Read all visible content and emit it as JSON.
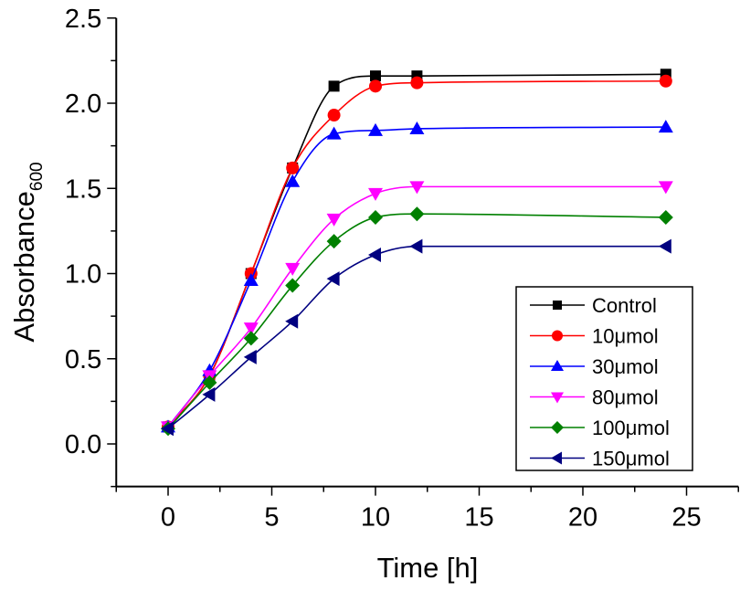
{
  "chart_data": {
    "type": "line",
    "title": "",
    "xlabel": "Time [h]",
    "ylabel": "Absorbance",
    "ylabel_subscript": "600",
    "xlim": [
      -2.5,
      27.5
    ],
    "ylim": [
      -0.25,
      2.5
    ],
    "xticks": [
      0,
      5,
      10,
      15,
      20,
      25
    ],
    "xtick_labels": [
      "0",
      "5",
      "10",
      "15",
      "20",
      "25"
    ],
    "yticks": [
      0.0,
      0.5,
      1.0,
      1.5,
      2.0,
      2.5
    ],
    "ytick_labels": [
      "0.0",
      "0.5",
      "1.0",
      "1.5",
      "2.0",
      "2.5"
    ],
    "x_minor_step": 2.5,
    "y_minor_step": 0.25,
    "grid": false,
    "legend_position": "bottom-right",
    "x": [
      0,
      2,
      4,
      6,
      8,
      10,
      12,
      24
    ],
    "series": [
      {
        "name": "Control",
        "color": "#000000",
        "marker": "square",
        "values": [
          0.1,
          0.4,
          1.0,
          1.62,
          2.1,
          2.16,
          2.16,
          2.17
        ]
      },
      {
        "name": "10μmol",
        "color": "#ff0000",
        "marker": "circle",
        "values": [
          0.1,
          0.4,
          1.0,
          1.62,
          1.93,
          2.1,
          2.12,
          2.13
        ]
      },
      {
        "name": "30μmol",
        "color": "#0000ff",
        "marker": "triangle-up",
        "values": [
          0.1,
          0.43,
          0.96,
          1.54,
          1.82,
          1.84,
          1.85,
          1.86
        ]
      },
      {
        "name": "80μmol",
        "color": "#ff00ff",
        "marker": "triangle-down",
        "values": [
          0.1,
          0.4,
          0.68,
          1.03,
          1.32,
          1.47,
          1.51,
          1.51
        ]
      },
      {
        "name": "100μmol",
        "color": "#008000",
        "marker": "diamond",
        "values": [
          0.09,
          0.36,
          0.62,
          0.93,
          1.19,
          1.33,
          1.35,
          1.33
        ]
      },
      {
        "name": "150μmol",
        "color": "#000080",
        "marker": "triangle-left",
        "values": [
          0.09,
          0.29,
          0.51,
          0.72,
          0.97,
          1.11,
          1.16,
          1.16
        ]
      }
    ]
  }
}
